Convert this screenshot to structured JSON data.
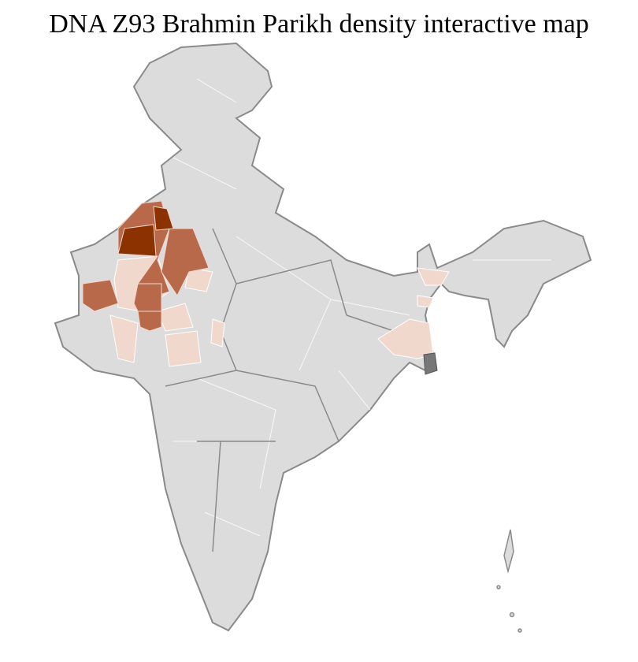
{
  "title": "DNA Z93 Brahmin Parikh density interactive map",
  "legend_scale": {
    "no_data": "#dcdcdc",
    "low": "#f0d8cc",
    "medium": "#b8694a",
    "high": "#8c3100",
    "border": "#8a8a8a",
    "district_border": "#ffffff"
  }
}
